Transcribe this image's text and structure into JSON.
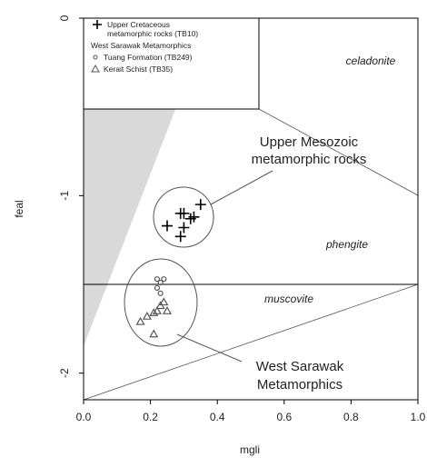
{
  "chart_data": {
    "type": "scatter",
    "x_label": "mgli",
    "y_label": "feal",
    "xlim": [
      0,
      1
    ],
    "ylim": [
      -2.15,
      0
    ],
    "xticks": [
      {
        "value": 0,
        "label": "0.0"
      },
      {
        "value": 0.2,
        "label": "0.2"
      },
      {
        "value": 0.4,
        "label": "0.4"
      },
      {
        "value": 0.6,
        "label": "0.6"
      },
      {
        "value": 0.8,
        "label": "0.8"
      },
      {
        "value": 1,
        "label": "1.0"
      }
    ],
    "yticks": [
      0,
      -1,
      -2
    ],
    "legend_group": "West Sarawak Metamorphics",
    "series": [
      {
        "name": "Upper Cretaceous metamorphic rocks (TB10)",
        "color": "#000000",
        "marker": "cross",
        "x": [
          0.29,
          0.3,
          0.32,
          0.35,
          0.3,
          0.25,
          0.29,
          0.33
        ],
        "values": [
          -1.1,
          -1.1,
          -1.13,
          -1.05,
          -1.18,
          -1.17,
          -1.23,
          -1.12
        ]
      },
      {
        "name": "Tuang Formation (TB249)",
        "color": "#555555",
        "marker": "circle",
        "x": [
          0.22,
          0.24,
          0.23,
          0.22,
          0.23
        ],
        "values": [
          -1.47,
          -1.47,
          -1.49,
          -1.52,
          -1.55
        ]
      },
      {
        "name": "Kerait Schist (TB35)",
        "color": "#555555",
        "marker": "triangle",
        "x": [
          0.17,
          0.19,
          0.21,
          0.23,
          0.24,
          0.25,
          0.22,
          0.21
        ],
        "values": [
          -1.71,
          -1.68,
          -1.66,
          -1.62,
          -1.6,
          -1.65,
          -1.65,
          -1.78
        ]
      }
    ],
    "annotations": [
      "celadonite",
      "Upper Mesozoic",
      "metamorphic rocks",
      "phengite",
      "muscovite",
      "West Sarawak",
      "Metamorphics"
    ]
  }
}
